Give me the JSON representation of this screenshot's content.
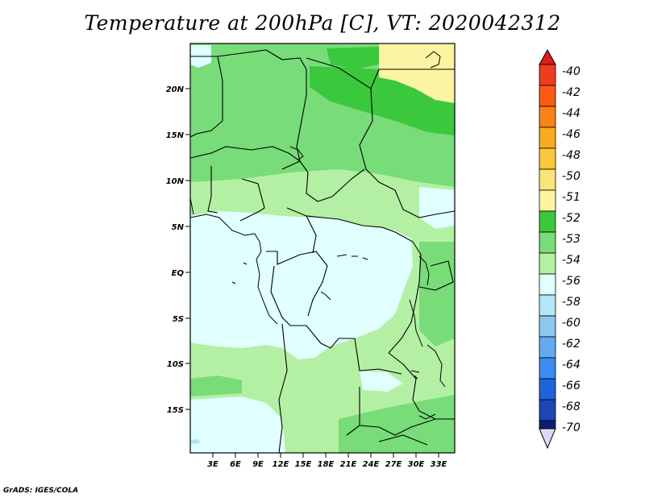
{
  "title": "Temperature at 200hPa [C], VT: 2020042312",
  "credit": "GrADS: IGES/COLA",
  "map": {
    "lat_labels": [
      "20N",
      "15N",
      "10N",
      "5N",
      "EQ",
      "5S",
      "10S",
      "15S"
    ],
    "lon_labels": [
      "3E",
      "6E",
      "9E",
      "12E",
      "15E",
      "18E",
      "21E",
      "24E",
      "27E",
      "30E",
      "33E"
    ],
    "fill_colors": {
      "c_51": "#fdf4a3",
      "c_52": "#3cc83c",
      "c_53": "#78dc78",
      "c_54": "#b4f0a4",
      "c_56": "#e0fffe",
      "c_58": "#b4e6f8"
    }
  },
  "colorbar": {
    "labels": [
      "-40",
      "-42",
      "-44",
      "-46",
      "-48",
      "-50",
      "-51",
      "-52",
      "-53",
      "-54",
      "-56",
      "-58",
      "-60",
      "-62",
      "-64",
      "-66",
      "-68",
      "-70"
    ],
    "colors": [
      "#f03c1e",
      "#fa5a14",
      "#fa8214",
      "#faaa1e",
      "#fac83c",
      "#fae678",
      "#fdf4a3",
      "#3cc83c",
      "#78dc78",
      "#b4f0a4",
      "#e0fffe",
      "#b4e6f8",
      "#8cc8f0",
      "#64aaf0",
      "#3c8cf0",
      "#1e64dc",
      "#1e46b4",
      "#0a1e78"
    ],
    "top_arrow_color": "#dc1e1e",
    "bottom_arrow_color": "#e0d8f8"
  }
}
